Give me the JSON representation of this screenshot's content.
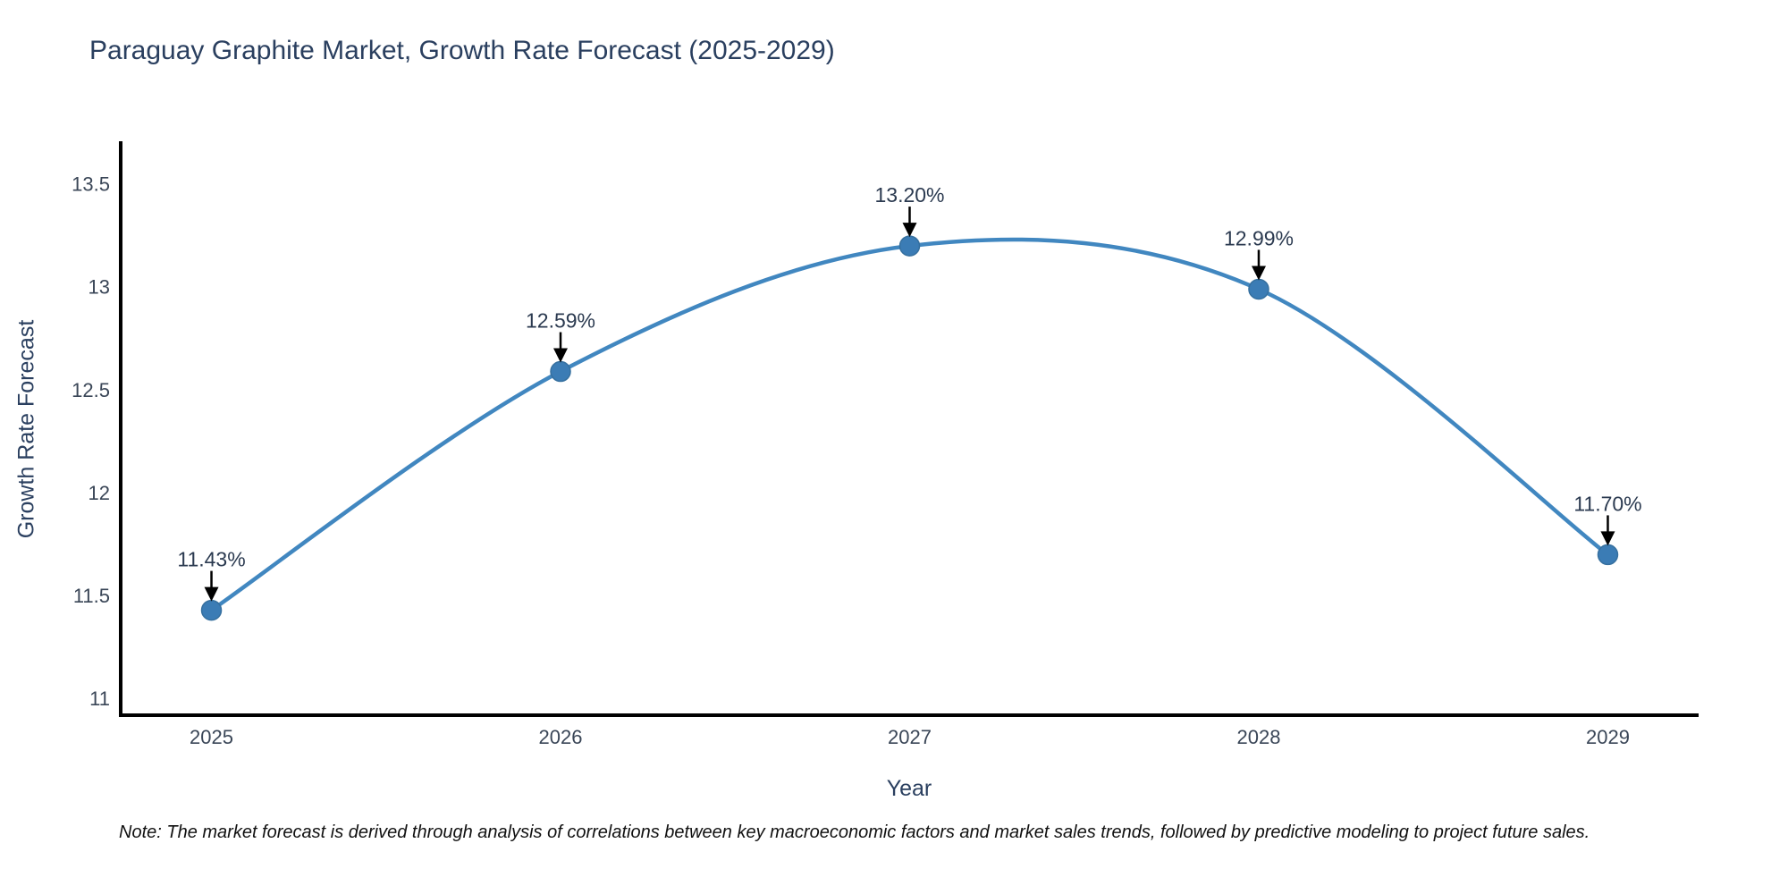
{
  "title": "Paraguay Graphite Market, Growth Rate Forecast (2025-2029)",
  "note": "Note: The market forecast is derived through analysis of correlations between key macroeconomic factors and market sales trends, followed by predictive modeling to project future sales.",
  "chart_data": {
    "type": "line",
    "title": "Paraguay Graphite Market, Growth Rate Forecast (2025-2029)",
    "xlabel": "Year",
    "ylabel": "Growth Rate Forecast",
    "x": [
      2025,
      2026,
      2027,
      2028,
      2029
    ],
    "values": [
      11.43,
      12.59,
      13.2,
      12.99,
      11.7
    ],
    "point_labels": [
      "11.43%",
      "12.59%",
      "13.20%",
      "12.99%",
      "11.70%"
    ],
    "xlim": [
      2024.74,
      2029.26
    ],
    "ylim": [
      10.92,
      13.7
    ],
    "xticks": [
      2025,
      2026,
      2027,
      2028,
      2029
    ],
    "xtick_labels": [
      "2025",
      "2026",
      "2027",
      "2028",
      "2029"
    ],
    "yticks": [
      11,
      11.5,
      12,
      12.5,
      13,
      13.5
    ],
    "ytick_labels": [
      "11",
      "11.5",
      "12",
      "12.5",
      "13",
      "13.5"
    ],
    "grid": false,
    "legend": false,
    "line_shape": "spline",
    "colors": {
      "line": "#4187c0",
      "marker_fill": "#3b7cb5",
      "marker_edge": "#36709f",
      "axis_line": "#000000",
      "tick_text": "#3a4657",
      "title_text": "#2a3f5f",
      "annotation_text": "#2b3a50",
      "arrow": "#000000",
      "background": "#ffffff"
    }
  }
}
